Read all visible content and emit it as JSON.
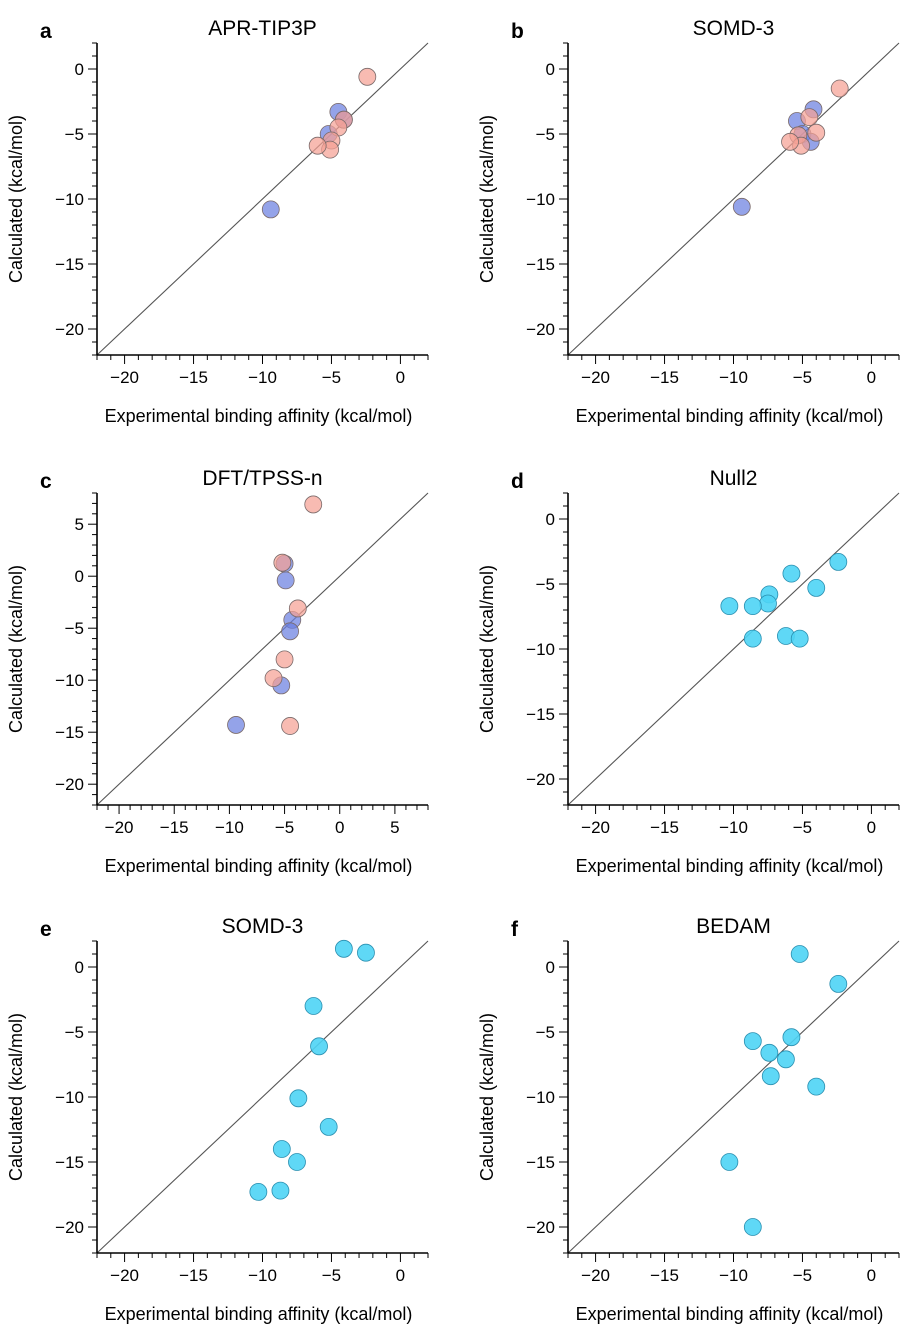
{
  "colors": {
    "blue": "#6b80e0",
    "salmon": "#f5a194",
    "cyan": "#4ed4f5"
  },
  "chart_data": [
    {
      "type": "scatter",
      "panel": "a",
      "title": "APR-TIP3P",
      "xlabel": "Experimental binding affinity (kcal/mol)",
      "ylabel": "Calculated (kcal/mol)",
      "xlim": [
        -22,
        2
      ],
      "ylim": [
        -22,
        2
      ],
      "xticks": [
        -20,
        -15,
        -10,
        -5,
        0
      ],
      "yticks": [
        -20,
        -15,
        -10,
        -5,
        0
      ],
      "identity_line": true,
      "series": [
        {
          "color": "blue",
          "points": [
            [
              -9.4,
              -10.8
            ],
            [
              -5.2,
              -5.0
            ],
            [
              -4.5,
              -3.3
            ],
            [
              -4.1,
              -3.9
            ]
          ]
        },
        {
          "color": "salmon",
          "points": [
            [
              -2.4,
              -0.6
            ],
            [
              -4.1,
              -3.9
            ],
            [
              -4.5,
              -4.5
            ],
            [
              -5.0,
              -5.5
            ],
            [
              -5.1,
              -6.2
            ],
            [
              -6.0,
              -5.9
            ]
          ]
        }
      ]
    },
    {
      "type": "scatter",
      "panel": "b",
      "title": "SOMD-3",
      "xlabel": "Experimental binding affinity (kcal/mol)",
      "ylabel": "Calculated (kcal/mol)",
      "xlim": [
        -22,
        2
      ],
      "ylim": [
        -22,
        2
      ],
      "xticks": [
        -20,
        -15,
        -10,
        -5,
        0
      ],
      "yticks": [
        -20,
        -15,
        -10,
        -5,
        0
      ],
      "identity_line": true,
      "series": [
        {
          "color": "blue",
          "points": [
            [
              -9.4,
              -10.6
            ],
            [
              -5.4,
              -4.0
            ],
            [
              -5.0,
              -5.0
            ],
            [
              -4.4,
              -5.6
            ],
            [
              -4.2,
              -3.1
            ]
          ]
        },
        {
          "color": "salmon",
          "points": [
            [
              -2.3,
              -1.5
            ],
            [
              -4.5,
              -3.7
            ],
            [
              -4.0,
              -4.9
            ],
            [
              -5.3,
              -5.1
            ],
            [
              -5.1,
              -5.9
            ],
            [
              -5.9,
              -5.6
            ]
          ]
        }
      ]
    },
    {
      "type": "scatter",
      "panel": "c",
      "title": "DFT/TPSS-n",
      "xlabel": "Experimental binding affinity (kcal/mol)",
      "ylabel": "Calculated (kcal/mol)",
      "xlim": [
        -22,
        8
      ],
      "ylim": [
        -22,
        8
      ],
      "xticks": [
        -20,
        -15,
        -10,
        -5,
        0,
        5
      ],
      "yticks": [
        -20,
        -15,
        -10,
        -5,
        0,
        5
      ],
      "identity_line": true,
      "series": [
        {
          "color": "blue",
          "points": [
            [
              -9.4,
              -14.3
            ],
            [
              -5.0,
              1.2
            ],
            [
              -4.9,
              -0.4
            ],
            [
              -4.3,
              -4.2
            ],
            [
              -4.5,
              -5.3
            ],
            [
              -5.3,
              -10.5
            ]
          ]
        },
        {
          "color": "salmon",
          "points": [
            [
              -2.4,
              6.9
            ],
            [
              -5.2,
              1.3
            ],
            [
              -3.8,
              -3.1
            ],
            [
              -5.0,
              -8.0
            ],
            [
              -6.0,
              -9.8
            ],
            [
              -4.5,
              -14.4
            ]
          ]
        }
      ]
    },
    {
      "type": "scatter",
      "panel": "d",
      "title": "Null2",
      "xlabel": "Experimental binding affinity (kcal/mol)",
      "ylabel": "Calculated (kcal/mol)",
      "xlim": [
        -22,
        2
      ],
      "ylim": [
        -22,
        2
      ],
      "xticks": [
        -20,
        -15,
        -10,
        -5,
        0
      ],
      "yticks": [
        -20,
        -15,
        -10,
        -5,
        0
      ],
      "identity_line": true,
      "series": [
        {
          "color": "cyan",
          "points": [
            [
              -2.4,
              -3.3
            ],
            [
              -5.8,
              -4.2
            ],
            [
              -4.0,
              -5.3
            ],
            [
              -7.4,
              -5.8
            ],
            [
              -7.5,
              -6.5
            ],
            [
              -8.6,
              -6.7
            ],
            [
              -10.3,
              -6.7
            ],
            [
              -8.6,
              -9.2
            ],
            [
              -6.2,
              -9.0
            ],
            [
              -5.2,
              -9.2
            ]
          ]
        }
      ]
    },
    {
      "type": "scatter",
      "panel": "e",
      "title": "SOMD-3",
      "xlabel": "Experimental binding affinity (kcal/mol)",
      "ylabel": "Calculated (kcal/mol)",
      "xlim": [
        -22,
        2
      ],
      "ylim": [
        -22,
        2
      ],
      "xticks": [
        -20,
        -15,
        -10,
        -5,
        0
      ],
      "yticks": [
        -20,
        -15,
        -10,
        -5,
        0
      ],
      "identity_line": true,
      "series": [
        {
          "color": "cyan",
          "points": [
            [
              -4.1,
              1.4
            ],
            [
              -2.5,
              1.1
            ],
            [
              -6.3,
              -3.0
            ],
            [
              -5.9,
              -6.1
            ],
            [
              -7.4,
              -10.1
            ],
            [
              -5.2,
              -12.3
            ],
            [
              -8.6,
              -14.0
            ],
            [
              -7.5,
              -15.0
            ],
            [
              -10.3,
              -17.3
            ],
            [
              -8.7,
              -17.2
            ]
          ]
        }
      ]
    },
    {
      "type": "scatter",
      "panel": "f",
      "title": "BEDAM",
      "xlabel": "Experimental binding affinity (kcal/mol)",
      "ylabel": "Calculated (kcal/mol)",
      "xlim": [
        -22,
        2
      ],
      "ylim": [
        -22,
        2
      ],
      "xticks": [
        -20,
        -15,
        -10,
        -5,
        0
      ],
      "yticks": [
        -20,
        -15,
        -10,
        -5,
        0
      ],
      "identity_line": true,
      "series": [
        {
          "color": "cyan",
          "points": [
            [
              -5.2,
              1.0
            ],
            [
              -2.4,
              -1.3
            ],
            [
              -5.8,
              -5.4
            ],
            [
              -8.6,
              -5.7
            ],
            [
              -7.4,
              -6.6
            ],
            [
              -6.2,
              -7.1
            ],
            [
              -7.3,
              -8.4
            ],
            [
              -4.0,
              -9.2
            ],
            [
              -10.3,
              -15.0
            ],
            [
              -8.6,
              -20.0
            ]
          ]
        }
      ]
    }
  ]
}
